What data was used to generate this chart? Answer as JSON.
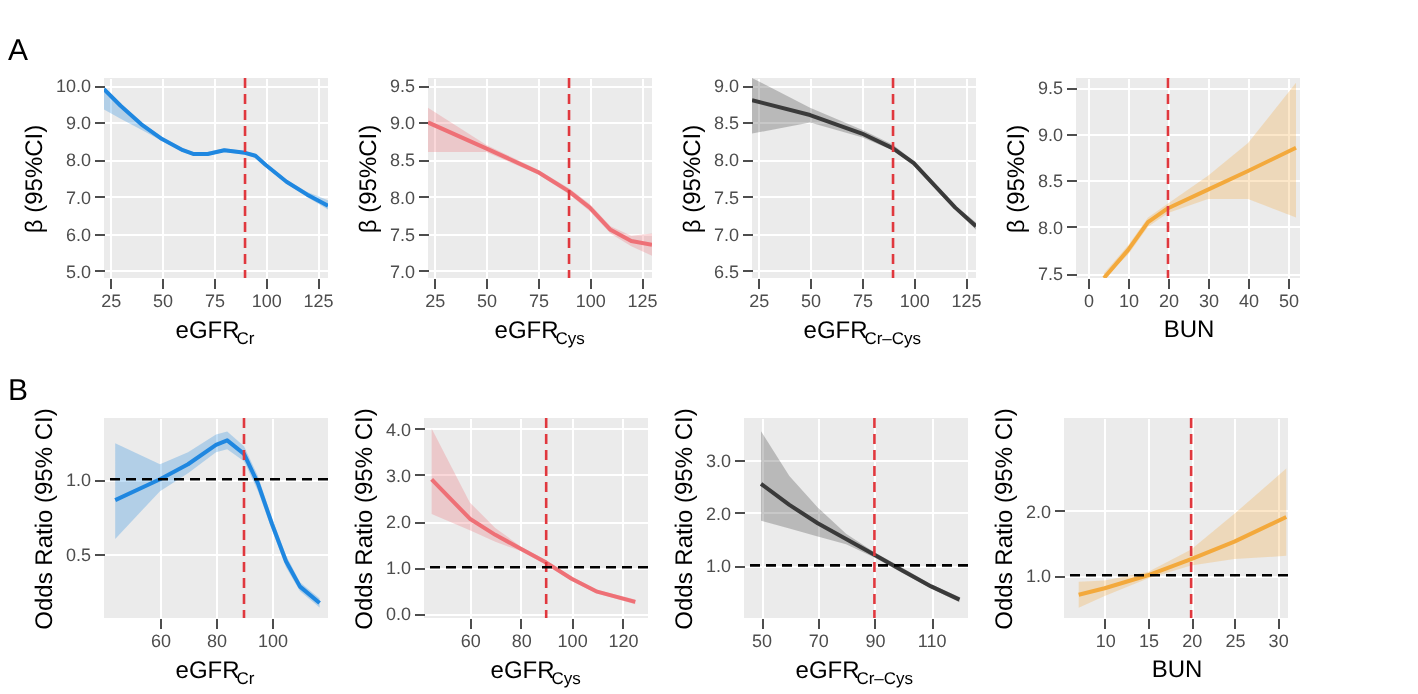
{
  "chart_data": [
    {
      "type": "line",
      "xlabel": "eGFR$_{Cr}$",
      "ylabel": "β (95%CI)",
      "annotations": [
        "A"
      ],
      "grid": true,
      "xlim": [
        22,
        130
      ],
      "xticks": [
        25,
        50,
        75,
        100,
        125
      ],
      "ylim": [
        4.8,
        10.2
      ],
      "yticks": [
        {
          "value": 5,
          "label": "5.0"
        },
        {
          "value": 6,
          "label": "6.0"
        },
        {
          "value": 7,
          "label": "7.0"
        },
        {
          "value": 8,
          "label": "8.0"
        },
        {
          "value": 9,
          "label": "9.0"
        },
        {
          "value": 10,
          "label": "10.0"
        }
      ],
      "ref_lines": [
        {
          "axis": "x",
          "value": 90,
          "color": "#e0383e",
          "line_style": "dashed"
        }
      ],
      "series": [
        {
          "color": "#1f87e0",
          "x": [
            22,
            30,
            40,
            50,
            60,
            65,
            72,
            80,
            90,
            95,
            100,
            110,
            120,
            130
          ],
          "values": [
            9.9,
            9.45,
            8.95,
            8.55,
            8.25,
            8.15,
            8.15,
            8.25,
            8.18,
            8.1,
            7.85,
            7.4,
            7.05,
            6.75
          ],
          "lower": [
            9.35,
            9.1,
            8.8,
            8.5,
            8.2,
            8.1,
            8.1,
            8.2,
            8.13,
            8.05,
            7.8,
            7.35,
            6.98,
            6.65
          ],
          "upper": [
            9.95,
            9.5,
            9.0,
            8.6,
            8.3,
            8.2,
            8.2,
            8.3,
            8.23,
            8.15,
            7.9,
            7.45,
            7.12,
            6.9
          ]
        }
      ]
    },
    {
      "type": "line",
      "xlabel": "eGFR$_{Cys}$",
      "ylabel": "β (95%CI)",
      "grid": true,
      "xlim": [
        22,
        130
      ],
      "xticks": [
        25,
        50,
        75,
        100,
        125
      ],
      "ylim": [
        6.9,
        9.6
      ],
      "yticks": [
        {
          "value": 7,
          "label": "7.0"
        },
        7.5,
        {
          "value": 8,
          "label": "8.0"
        },
        8.5,
        {
          "value": 9,
          "label": "9.0"
        },
        9.5
      ],
      "ref_lines": [
        {
          "axis": "x",
          "value": 90,
          "color": "#e0383e",
          "line_style": "dashed"
        }
      ],
      "series": [
        {
          "color": "#ee7076",
          "x": [
            22,
            50,
            75,
            90,
            100,
            110,
            120,
            130
          ],
          "values": [
            9.0,
            8.65,
            8.33,
            8.07,
            7.85,
            7.55,
            7.4,
            7.35
          ],
          "lower": [
            8.6,
            8.6,
            8.3,
            8.03,
            7.8,
            7.5,
            7.33,
            7.2
          ],
          "upper": [
            9.2,
            8.7,
            8.36,
            8.11,
            7.9,
            7.6,
            7.47,
            7.5
          ]
        }
      ]
    },
    {
      "type": "line",
      "xlabel": "eGFR$_{Cr–Cys}$",
      "ylabel": "β (95%CI)",
      "grid": true,
      "xlim": [
        22,
        130
      ],
      "xticks": [
        25,
        50,
        75,
        100,
        125
      ],
      "ylim": [
        6.4,
        9.1
      ],
      "yticks": [
        6.5,
        {
          "value": 7,
          "label": "7.0"
        },
        7.5,
        {
          "value": 8,
          "label": "8.0"
        },
        8.5,
        {
          "value": 9,
          "label": "9.0"
        }
      ],
      "ref_lines": [
        {
          "axis": "x",
          "value": 90,
          "color": "#e0383e",
          "line_style": "dashed"
        }
      ],
      "series": [
        {
          "color": "#3a3a3a",
          "x": [
            22,
            50,
            75,
            90,
            100,
            110,
            120,
            130
          ],
          "values": [
            8.8,
            8.6,
            8.35,
            8.15,
            7.95,
            7.65,
            7.35,
            7.1
          ],
          "lower": [
            8.35,
            8.5,
            8.3,
            8.12,
            7.92,
            7.62,
            7.32,
            7.05
          ],
          "upper": [
            9.1,
            8.7,
            8.4,
            8.2,
            7.98,
            7.68,
            7.38,
            7.15
          ]
        }
      ]
    },
    {
      "type": "line",
      "xlabel": "BUN",
      "ylabel": "β (95%CI)",
      "grid": true,
      "xlim": [
        -3,
        53
      ],
      "xticks": [
        0,
        10,
        20,
        30,
        40,
        50
      ],
      "ylim": [
        7.45,
        9.6
      ],
      "yticks": [
        7.5,
        {
          "value": 8,
          "label": "8.0"
        },
        8.5,
        {
          "value": 9,
          "label": "9.0"
        },
        9.5
      ],
      "ref_lines": [
        {
          "axis": "x",
          "value": 20,
          "color": "#e0383e",
          "line_style": "dashed"
        }
      ],
      "series": [
        {
          "color": "#f3a93c",
          "x": [
            4,
            10,
            15,
            20,
            30,
            40,
            52
          ],
          "values": [
            7.45,
            7.75,
            8.05,
            8.2,
            8.4,
            8.6,
            8.85
          ],
          "lower": [
            7.45,
            7.7,
            8.0,
            8.15,
            8.3,
            8.3,
            8.1
          ],
          "upper": [
            7.5,
            7.8,
            8.1,
            8.25,
            8.55,
            8.9,
            9.55
          ]
        }
      ]
    },
    {
      "type": "line",
      "xlabel": "eGFR$_{Cr}$",
      "ylabel": "Odds Ratio (95% CI)",
      "annotations": [
        "B"
      ],
      "grid": true,
      "xlim": [
        40,
        120
      ],
      "xticks": [
        60,
        80,
        100
      ],
      "ylim": [
        0.07,
        1.41
      ],
      "yticks": [
        0.5,
        {
          "value": 1,
          "label": "1.0"
        }
      ],
      "ref_lines": [
        {
          "axis": "x",
          "value": 90,
          "color": "#e0383e",
          "line_style": "dashed"
        },
        {
          "axis": "y",
          "value": 1,
          "color": "#000000",
          "line_style": "dashed"
        }
      ],
      "series": [
        {
          "color": "#1f87e0",
          "x": [
            44,
            60,
            70,
            80,
            84,
            90,
            95,
            100,
            105,
            110,
            117
          ],
          "values": [
            0.86,
            1.0,
            1.1,
            1.23,
            1.26,
            1.17,
            0.97,
            0.7,
            0.45,
            0.28,
            0.17
          ],
          "lower": [
            0.6,
            0.92,
            1.04,
            1.18,
            1.2,
            1.12,
            0.92,
            0.66,
            0.41,
            0.25,
            0.14
          ],
          "upper": [
            1.24,
            1.1,
            1.18,
            1.3,
            1.32,
            1.22,
            1.02,
            0.74,
            0.49,
            0.31,
            0.2
          ]
        }
      ]
    },
    {
      "type": "line",
      "xlabel": "eGFR$_{Cys}$",
      "ylabel": "Odds Ratio (95% CI)",
      "grid": true,
      "xlim": [
        42,
        130
      ],
      "xticks": [
        60,
        80,
        100,
        120
      ],
      "ylim": [
        -0.1,
        4.23
      ],
      "yticks": [
        {
          "value": 0,
          "label": "0.0"
        },
        {
          "value": 1,
          "label": "1.0"
        },
        {
          "value": 2,
          "label": "2.0"
        },
        {
          "value": 3,
          "label": "3.0"
        },
        {
          "value": 4,
          "label": "4.0"
        }
      ],
      "ref_lines": [
        {
          "axis": "x",
          "value": 90,
          "color": "#e0383e",
          "line_style": "dashed"
        },
        {
          "axis": "y",
          "value": 1,
          "color": "#000000",
          "line_style": "dashed"
        }
      ],
      "series": [
        {
          "color": "#ee7076",
          "x": [
            45,
            60,
            70,
            80,
            90,
            100,
            110,
            125
          ],
          "values": [
            2.9,
            2.05,
            1.7,
            1.4,
            1.1,
            0.75,
            0.47,
            0.25
          ],
          "lower": [
            2.15,
            1.8,
            1.55,
            1.35,
            1.05,
            0.7,
            0.43,
            0.2
          ],
          "upper": [
            4.0,
            2.4,
            1.85,
            1.45,
            1.15,
            0.8,
            0.51,
            0.3
          ]
        }
      ]
    },
    {
      "type": "line",
      "xlabel": "eGFR$_{Cr–Cys}$",
      "ylabel": "Odds Ratio (95% CI)",
      "grid": true,
      "xlim": [
        44,
        123
      ],
      "xticks": [
        50,
        70,
        90,
        110
      ],
      "ylim": [
        0,
        3.8
      ],
      "yticks": [
        {
          "value": 1,
          "label": "1.0"
        },
        {
          "value": 2,
          "label": "2.0"
        },
        {
          "value": 3,
          "label": "3.0"
        }
      ],
      "ref_lines": [
        {
          "axis": "x",
          "value": 90,
          "color": "#e0383e",
          "line_style": "dashed"
        },
        {
          "axis": "y",
          "value": 1,
          "color": "#000000",
          "line_style": "dashed"
        }
      ],
      "series": [
        {
          "color": "#3a3a3a",
          "x": [
            50,
            60,
            70,
            80,
            90,
            100,
            110,
            120
          ],
          "values": [
            2.55,
            2.15,
            1.8,
            1.5,
            1.2,
            0.9,
            0.6,
            0.35
          ],
          "lower": [
            1.85,
            1.7,
            1.55,
            1.4,
            1.15,
            0.85,
            0.56,
            0.3
          ],
          "upper": [
            3.55,
            2.7,
            2.1,
            1.6,
            1.25,
            0.95,
            0.64,
            0.4
          ]
        }
      ]
    },
    {
      "type": "line",
      "xlabel": "BUN",
      "ylabel": "Odds Ratio (95% CI)",
      "grid": true,
      "xlim": [
        5.3,
        31.2
      ],
      "xticks": [
        10,
        15,
        20,
        25,
        30
      ],
      "ylim": [
        0.34,
        3.43
      ],
      "yticks": [
        {
          "value": 1,
          "label": "1.0"
        },
        {
          "value": 2,
          "label": "2.0"
        }
      ],
      "ref_lines": [
        {
          "axis": "x",
          "value": 20,
          "color": "#e0383e",
          "line_style": "dashed"
        },
        {
          "axis": "y",
          "value": 1,
          "color": "#000000",
          "line_style": "dashed"
        }
      ],
      "series": [
        {
          "color": "#f3a93c",
          "x": [
            7,
            10,
            15,
            20,
            25,
            31
          ],
          "values": [
            0.7,
            0.8,
            1.0,
            1.25,
            1.52,
            1.9
          ],
          "lower": [
            0.5,
            0.68,
            0.95,
            1.15,
            1.25,
            1.3
          ],
          "upper": [
            0.9,
            0.92,
            1.05,
            1.4,
            1.95,
            2.65
          ]
        }
      ]
    }
  ]
}
